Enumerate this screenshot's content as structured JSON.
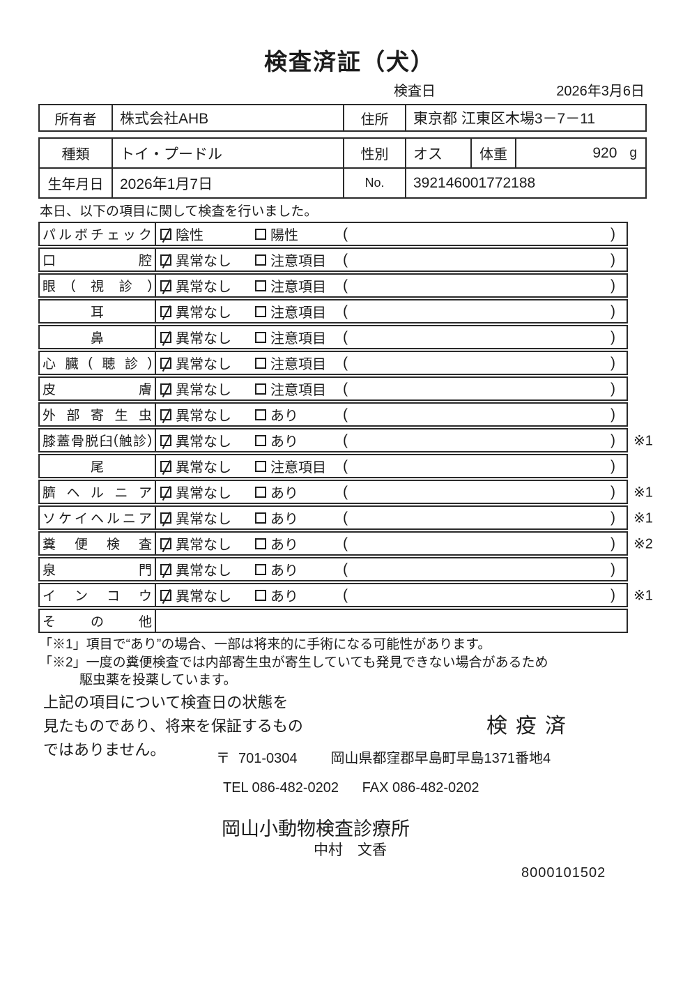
{
  "title": "検査済証（犬）",
  "date_row": {
    "label": "検査日",
    "value": "2026年3月6日"
  },
  "owner_table": {
    "owner_label": "所有者",
    "owner_value": "株式会社AHB",
    "address_label": "住所",
    "address_value": "東京都 江東区木場3－7－11"
  },
  "info_table": {
    "breed_label": "種類",
    "breed_value": "トイ・プードル",
    "sex_label": "性別",
    "sex_value": "オス",
    "weight_label": "体重",
    "weight_value": "920",
    "weight_unit": "g",
    "birth_label": "生年月日",
    "birth_value": "2026年1月7日",
    "no_label": "No.",
    "no_value": "392146001772188"
  },
  "intro": "本日、以下の項目に関して検査を行いました。",
  "exam_table": {
    "paren_open": "(",
    "paren_close": ")",
    "rows": [
      {
        "label": "パルボチェック",
        "align": "justify",
        "opt1": "陰性",
        "opt1_checked": true,
        "opt2": "陽性",
        "opt2_checked": false,
        "note": ""
      },
      {
        "label": "口腔",
        "align": "justify",
        "opt1": "異常なし",
        "opt1_checked": true,
        "opt2": "注意項目",
        "opt2_checked": false,
        "note": ""
      },
      {
        "label": "眼(視診)",
        "align": "justify",
        "opt1": "異常なし",
        "opt1_checked": true,
        "opt2": "注意項目",
        "opt2_checked": false,
        "note": ""
      },
      {
        "label": "耳",
        "align": "center",
        "opt1": "異常なし",
        "opt1_checked": true,
        "opt2": "注意項目",
        "opt2_checked": false,
        "note": ""
      },
      {
        "label": "鼻",
        "align": "center",
        "opt1": "異常なし",
        "opt1_checked": true,
        "opt2": "注意項目",
        "opt2_checked": false,
        "note": ""
      },
      {
        "label": "心臓(聴診)",
        "align": "justify",
        "opt1": "異常なし",
        "opt1_checked": true,
        "opt2": "注意項目",
        "opt2_checked": false,
        "note": ""
      },
      {
        "label": "皮膚",
        "align": "justify",
        "opt1": "異常なし",
        "opt1_checked": true,
        "opt2": "注意項目",
        "opt2_checked": false,
        "note": ""
      },
      {
        "label": "外部寄生虫",
        "align": "justify",
        "opt1": "異常なし",
        "opt1_checked": true,
        "opt2": "あり",
        "opt2_checked": false,
        "note": ""
      },
      {
        "label": "膝蓋骨脱臼(触診)",
        "align": "justify",
        "opt1": "異常なし",
        "opt1_checked": true,
        "opt2": "あり",
        "opt2_checked": false,
        "note": "※1"
      },
      {
        "label": "尾",
        "align": "center",
        "opt1": "異常なし",
        "opt1_checked": true,
        "opt2": "注意項目",
        "opt2_checked": false,
        "note": ""
      },
      {
        "label": "臍ヘルニア",
        "align": "justify",
        "opt1": "異常なし",
        "opt1_checked": true,
        "opt2": "あり",
        "opt2_checked": false,
        "note": "※1"
      },
      {
        "label": "ソケイヘルニア",
        "align": "justify",
        "opt1": "異常なし",
        "opt1_checked": true,
        "opt2": "あり",
        "opt2_checked": false,
        "note": "※1"
      },
      {
        "label": "糞便検査",
        "align": "justify",
        "opt1": "異常なし",
        "opt1_checked": true,
        "opt2": "あり",
        "opt2_checked": false,
        "note": "※2"
      },
      {
        "label": "泉門",
        "align": "justify",
        "opt1": "異常なし",
        "opt1_checked": true,
        "opt2": "あり",
        "opt2_checked": false,
        "note": ""
      },
      {
        "label": "インコウ",
        "align": "justify",
        "opt1": "異常なし",
        "opt1_checked": true,
        "opt2": "あり",
        "opt2_checked": false,
        "note": "※1"
      },
      {
        "label": "その他",
        "align": "justify",
        "opt1": null,
        "opt1_checked": false,
        "opt2": null,
        "opt2_checked": false,
        "note": ""
      }
    ]
  },
  "footnotes": {
    "line1": "「※1」項目で“あり”の場合、一部は将来的に手術になる可能性があります。",
    "line2": "「※2」一度の糞便検査では内部寄生虫が寄生していても発見できない場合があるため",
    "line3": "駆虫薬を投薬しています。"
  },
  "disclaimer": "上記の項目について検査日の状態を\n見たものであり、将来を保証するもの\nではありません。",
  "stamp": "検疫済",
  "clinic": {
    "postal_mark": "〒",
    "postal_code": "701-0304",
    "address": "岡山県都窪郡早島町早島1371番地4",
    "tel_label": "TEL",
    "tel": "086-482-0202",
    "fax_label": "FAX",
    "fax": "086-482-0202",
    "name": "岡山小動物検査診療所",
    "veterinarian": "中村　文香",
    "doc_number": "8000101502"
  }
}
